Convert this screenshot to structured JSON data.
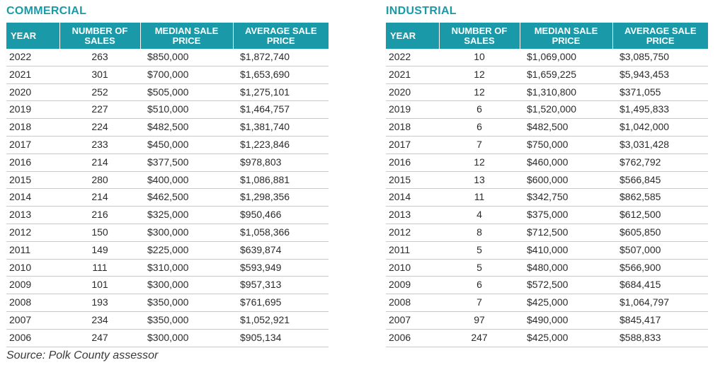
{
  "commercial": {
    "title": "COMMERCIAL",
    "headers": [
      "YEAR",
      "NUMBER OF SALES",
      "MEDIAN SALE PRICE",
      "AVERAGE SALE PRICE"
    ],
    "rows": [
      [
        "2022",
        "263",
        "$850,000",
        "$1,872,740"
      ],
      [
        "2021",
        "301",
        "$700,000",
        "$1,653,690"
      ],
      [
        "2020",
        "252",
        "$505,000",
        "$1,275,101"
      ],
      [
        "2019",
        "227",
        "$510,000",
        "$1,464,757"
      ],
      [
        "2018",
        "224",
        "$482,500",
        "$1,381,740"
      ],
      [
        "2017",
        "233",
        "$450,000",
        "$1,223,846"
      ],
      [
        "2016",
        "214",
        "$377,500",
        "$978,803"
      ],
      [
        "2015",
        "280",
        "$400,000",
        "$1,086,881"
      ],
      [
        "2014",
        "214",
        "$462,500",
        "$1,298,356"
      ],
      [
        "2013",
        "216",
        "$325,000",
        "$950,466"
      ],
      [
        "2012",
        "150",
        "$300,000",
        "$1,058,366"
      ],
      [
        "2011",
        "149",
        "$225,000",
        "$639,874"
      ],
      [
        "2010",
        "111",
        "$310,000",
        "$593,949"
      ],
      [
        "2009",
        "101",
        "$300,000",
        "$957,313"
      ],
      [
        "2008",
        "193",
        "$350,000",
        "$761,695"
      ],
      [
        "2007",
        "234",
        "$350,000",
        "$1,052,921"
      ],
      [
        "2006",
        "247",
        "$300,000",
        "$905,134"
      ]
    ]
  },
  "industrial": {
    "title": "INDUSTRIAL",
    "headers": [
      "YEAR",
      "NUMBER OF SALES",
      "MEDIAN SALE PRICE",
      "AVERAGE SALE PRICE"
    ],
    "rows": [
      [
        "2022",
        "10",
        "$1,069,000",
        "$3,085,750"
      ],
      [
        "2021",
        "12",
        "$1,659,225",
        "$5,943,453"
      ],
      [
        "2020",
        "12",
        "$1,310,800",
        "$371,055"
      ],
      [
        "2019",
        "6",
        "$1,520,000",
        "$1,495,833"
      ],
      [
        "2018",
        "6",
        "$482,500",
        "$1,042,000"
      ],
      [
        "2017",
        "7",
        "$750,000",
        "$3,031,428"
      ],
      [
        "2016",
        "12",
        "$460,000",
        "$762,792"
      ],
      [
        "2015",
        "13",
        "$600,000",
        "$566,845"
      ],
      [
        "2014",
        "11",
        "$342,750",
        "$862,585"
      ],
      [
        "2013",
        "4",
        "$375,000",
        "$612,500"
      ],
      [
        "2012",
        "8",
        "$712,500",
        "$605,850"
      ],
      [
        "2011",
        "5",
        "$410,000",
        "$507,000"
      ],
      [
        "2010",
        "5",
        "$480,000",
        "$566,900"
      ],
      [
        "2009",
        "6",
        "$572,500",
        "$684,415"
      ],
      [
        "2008",
        "7",
        "$425,000",
        "$1,064,797"
      ],
      [
        "2007",
        "97",
        "$490,000",
        "$845,417"
      ],
      [
        "2006",
        "247",
        "$425,000",
        "$588,833"
      ]
    ]
  },
  "source": "Source: Polk County assessor",
  "colors": {
    "accent": "#1a9aa8",
    "header_text": "#ffffff",
    "row_rule": "#c9c9c9"
  }
}
